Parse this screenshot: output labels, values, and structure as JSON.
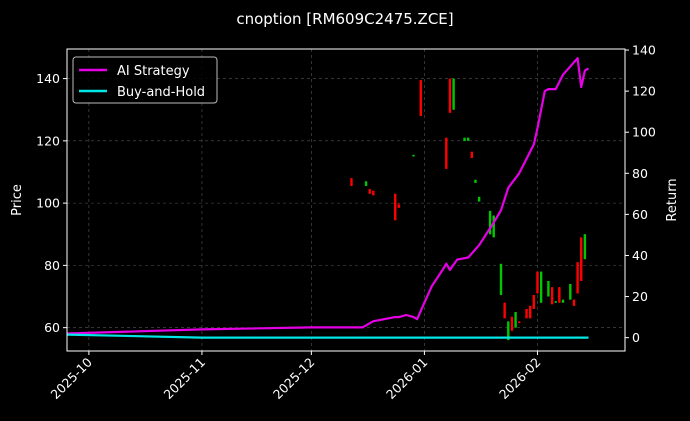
{
  "chart_data": {
    "type": "candlestick+line",
    "title": "cnoption [RM609C2475.ZCE]",
    "ylabel_left": "Price",
    "ylabel_right": "Return",
    "ylim_left": [
      52.5,
      149.5
    ],
    "ylim_right": [
      -6.5,
      140.5
    ],
    "xlim": [
      "2025-09-25",
      "2026-02-25"
    ],
    "grid": true,
    "legend_placement": "top-left",
    "x_ticks": [
      "2025-10-01",
      "2025-11-01",
      "2025-12-01",
      "2026-01-01",
      "2026-02-01"
    ],
    "x_tick_labels": [
      "2025-10",
      "2025-11",
      "2025-12",
      "2026-01",
      "2026-02"
    ],
    "y_ticks_left": [
      60,
      80,
      100,
      120,
      140
    ],
    "y_ticks_right": [
      0,
      20,
      40,
      60,
      80,
      100,
      120,
      140
    ],
    "colors": {
      "up": "#00c800",
      "down": "#ff0000",
      "strategy": "#e600e6",
      "buyhold": "#00e5e5"
    },
    "candles": [
      {
        "date": "2025-12-12",
        "open": 108,
        "close": 105.5,
        "high": 108,
        "low": 105.5
      },
      {
        "date": "2025-12-16",
        "open": 105.5,
        "close": 107,
        "high": 107,
        "low": 105.5
      },
      {
        "date": "2025-12-17",
        "open": 104.5,
        "close": 103,
        "high": 104.5,
        "low": 103
      },
      {
        "date": "2025-12-18",
        "open": 104,
        "close": 102.5,
        "high": 104,
        "low": 102.5
      },
      {
        "date": "2025-12-24",
        "open": 103,
        "close": 94.5,
        "high": 103,
        "low": 94.5
      },
      {
        "date": "2025-12-25",
        "open": 99.5,
        "close": 98.5,
        "high": 100,
        "low": 98.5
      },
      {
        "date": "2025-12-29",
        "open": 115,
        "close": 115.5,
        "high": 115.5,
        "low": 115
      },
      {
        "date": "2025-12-31",
        "open": 139.5,
        "close": 128,
        "high": 139.5,
        "low": 128
      },
      {
        "date": "2026-01-07",
        "open": 121,
        "close": 111,
        "high": 121,
        "low": 111
      },
      {
        "date": "2026-01-08",
        "open": 140,
        "close": 129,
        "high": 140,
        "low": 129
      },
      {
        "date": "2026-01-09",
        "open": 130,
        "close": 140,
        "high": 140,
        "low": 130
      },
      {
        "date": "2026-01-12",
        "open": 120,
        "close": 121,
        "high": 121,
        "low": 120
      },
      {
        "date": "2026-01-13",
        "open": 120,
        "close": 121,
        "high": 121,
        "low": 120
      },
      {
        "date": "2026-01-14",
        "open": 116.5,
        "close": 114.5,
        "high": 116.5,
        "low": 114.5
      },
      {
        "date": "2026-01-15",
        "open": 106.5,
        "close": 107.5,
        "high": 107.5,
        "low": 106.5
      },
      {
        "date": "2026-01-16",
        "open": 100.5,
        "close": 102,
        "high": 102,
        "low": 100.5
      },
      {
        "date": "2026-01-19",
        "open": 90,
        "close": 97.5,
        "high": 97.5,
        "low": 90
      },
      {
        "date": "2026-01-20",
        "open": 89,
        "close": 96,
        "high": 96,
        "low": 89
      },
      {
        "date": "2026-01-22",
        "open": 70.5,
        "close": 80.5,
        "high": 80.5,
        "low": 70.5
      },
      {
        "date": "2026-01-23",
        "open": 68,
        "close": 63,
        "high": 68,
        "low": 63
      },
      {
        "date": "2026-01-24",
        "open": 56,
        "close": 62,
        "high": 62,
        "low": 56
      },
      {
        "date": "2026-01-25",
        "open": 63.5,
        "close": 59,
        "high": 63.5,
        "low": 59
      },
      {
        "date": "2026-01-26",
        "open": 60,
        "close": 65,
        "high": 65,
        "low": 60
      },
      {
        "date": "2026-01-27",
        "open": 62,
        "close": 61.5,
        "high": 62,
        "low": 61.5
      },
      {
        "date": "2026-01-29",
        "open": 66,
        "close": 63,
        "high": 66,
        "low": 63
      },
      {
        "date": "2026-01-30",
        "open": 67,
        "close": 63,
        "high": 67,
        "low": 63
      },
      {
        "date": "2026-01-31",
        "open": 70.5,
        "close": 66,
        "high": 70.5,
        "low": 66
      },
      {
        "date": "2026-02-01",
        "open": 78,
        "close": 71,
        "high": 78,
        "low": 71
      },
      {
        "date": "2026-02-02",
        "open": 68,
        "close": 78,
        "high": 78,
        "low": 68
      },
      {
        "date": "2026-02-04",
        "open": 70,
        "close": 75,
        "high": 75,
        "low": 70
      },
      {
        "date": "2026-02-05",
        "open": 73,
        "close": 67.5,
        "high": 73,
        "low": 67.5
      },
      {
        "date": "2026-02-06",
        "open": 68,
        "close": 68.5,
        "high": 68.5,
        "low": 68
      },
      {
        "date": "2026-02-07",
        "open": 73,
        "close": 68,
        "high": 73,
        "low": 68
      },
      {
        "date": "2026-02-08",
        "open": 68,
        "close": 69,
        "high": 69,
        "low": 68
      },
      {
        "date": "2026-02-10",
        "open": 69,
        "close": 74,
        "high": 74,
        "low": 69
      },
      {
        "date": "2026-02-11",
        "open": 69,
        "close": 67,
        "high": 69,
        "low": 67
      },
      {
        "date": "2026-02-12",
        "open": 81,
        "close": 71,
        "high": 81,
        "low": 71
      },
      {
        "date": "2026-02-13",
        "open": 85,
        "close": 75,
        "high": 85,
        "low": 75
      },
      {
        "date": "2026-02-13",
        "open": 89,
        "close": 80,
        "high": 89,
        "low": 80
      },
      {
        "date": "2026-02-14",
        "open": 82,
        "close": 90,
        "high": 90,
        "low": 82
      }
    ],
    "series": [
      {
        "name": "AI Strategy",
        "axis": "right",
        "x": [
          "2025-09-25",
          "2025-11-01",
          "2025-12-01",
          "2025-12-15",
          "2025-12-18",
          "2025-12-24",
          "2025-12-25",
          "2025-12-27",
          "2025-12-29",
          "2025-12-30",
          "2026-01-01",
          "2026-01-03",
          "2026-01-06",
          "2026-01-07",
          "2026-01-08",
          "2026-01-10",
          "2026-01-13",
          "2026-01-16",
          "2026-01-20",
          "2026-01-22",
          "2026-01-24",
          "2026-01-27",
          "2026-01-29",
          "2026-01-31",
          "2026-02-01",
          "2026-02-03",
          "2026-02-04",
          "2026-02-06",
          "2026-02-08",
          "2026-02-12",
          "2026-02-13",
          "2026-02-14",
          "2026-02-15"
        ],
        "y": [
          2,
          4,
          5,
          5,
          8,
          10,
          10,
          11,
          10,
          9,
          17,
          25,
          33,
          36,
          33,
          38,
          39,
          45,
          56,
          62,
          73,
          80,
          87,
          94,
          102,
          120,
          121,
          121,
          128,
          136,
          122,
          130,
          131
        ]
      },
      {
        "name": "Buy-and-Hold",
        "axis": "right",
        "x": [
          "2025-09-25",
          "2025-11-01",
          "2026-02-15"
        ],
        "y": [
          1.5,
          0,
          0
        ]
      }
    ]
  }
}
